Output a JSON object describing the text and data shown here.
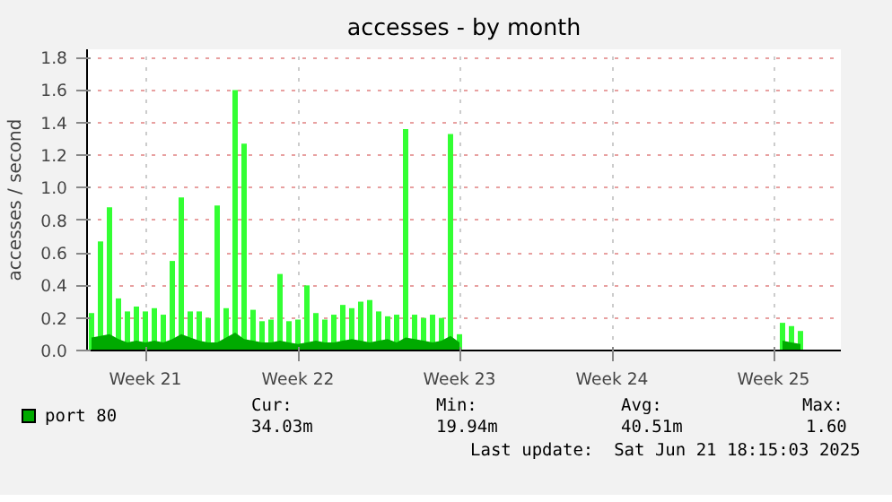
{
  "chart_data": {
    "type": "bar",
    "title": "accesses - by month",
    "ylabel": "accesses / second",
    "categories": [
      null,
      null,
      null,
      null,
      null,
      null,
      "Week 21",
      null,
      null,
      null,
      null,
      null,
      null,
      null,
      null,
      null,
      null,
      null,
      null,
      null,
      null,
      null,
      null,
      "Week 22",
      null,
      null,
      null,
      null,
      null,
      null,
      null,
      null,
      null,
      null,
      null,
      null,
      null,
      null,
      null,
      null,
      null,
      "Week 23",
      null,
      null,
      null,
      null,
      null,
      null,
      null,
      null,
      null,
      null,
      null,
      null,
      null,
      null,
      null,
      null,
      "Week 24",
      null,
      null,
      null,
      null,
      null,
      null,
      null,
      null,
      null,
      null,
      null,
      null,
      null,
      null,
      null,
      null,
      null,
      "Week 25",
      null,
      null,
      null,
      null,
      null,
      null,
      null
    ],
    "ylim": [
      0,
      1.85
    ],
    "yticks": [
      {
        "value": 0,
        "label": "0.0"
      },
      {
        "value": 0.2,
        "label": "0.2"
      },
      {
        "value": 0.4,
        "label": "0.4"
      },
      {
        "value": 0.6,
        "label": "0.6"
      },
      {
        "value": 0.8,
        "label": "0.8"
      },
      {
        "value": 1.0,
        "label": "1.0"
      },
      {
        "value": 1.2,
        "label": "1.2"
      },
      {
        "value": 1.4,
        "label": "1.4"
      },
      {
        "value": 1.6,
        "label": "1.6"
      },
      {
        "value": 1.8,
        "label": "1.8"
      }
    ],
    "grid": true,
    "legend": "bottom",
    "series": [
      {
        "color": "#33ff33",
        "values": [
          0.23,
          0.67,
          0.88,
          0.32,
          0.24,
          0.27,
          0.24,
          0.26,
          0.22,
          0.55,
          0.94,
          0.24,
          0.24,
          0.2,
          0.89,
          0.26,
          1.6,
          1.27,
          0.25,
          0.18,
          0.19,
          0.47,
          0.18,
          0.19,
          0.4,
          0.23,
          0.19,
          0.22,
          0.28,
          0.26,
          0.3,
          0.31,
          0.24,
          0.21,
          0.22,
          1.36,
          0.22,
          0.2,
          0.22,
          0.2,
          1.33,
          0.1,
          null,
          null,
          null,
          null,
          null,
          null,
          null,
          null,
          null,
          null,
          null,
          null,
          null,
          null,
          null,
          null,
          null,
          null,
          null,
          null,
          null,
          null,
          null,
          null,
          null,
          null,
          null,
          null,
          null,
          null,
          null,
          null,
          null,
          null,
          null,
          0.17,
          0.15,
          0.12,
          null,
          null,
          null,
          null
        ]
      },
      {
        "type": "area",
        "name": "port 80",
        "color": "#00aa00",
        "values": [
          0.08,
          0.09,
          0.1,
          0.07,
          0.05,
          0.06,
          0.05,
          0.06,
          0.05,
          0.07,
          0.1,
          0.08,
          0.06,
          0.05,
          0.05,
          0.08,
          0.11,
          0.07,
          0.06,
          0.05,
          0.05,
          0.06,
          0.05,
          0.04,
          0.05,
          0.06,
          0.05,
          0.05,
          0.06,
          0.07,
          0.06,
          0.05,
          0.06,
          0.07,
          0.05,
          0.08,
          0.07,
          0.06,
          0.05,
          0.06,
          0.09,
          0.05,
          null,
          null,
          null,
          null,
          null,
          null,
          null,
          null,
          null,
          null,
          null,
          null,
          null,
          null,
          null,
          null,
          null,
          null,
          null,
          null,
          null,
          null,
          null,
          null,
          null,
          null,
          null,
          null,
          null,
          null,
          null,
          null,
          null,
          null,
          null,
          0.06,
          0.05,
          0.04,
          null,
          null,
          null,
          null
        ]
      }
    ],
    "annotations": [
      "Cur:",
      "34.03m",
      "Min:",
      "19.94m",
      "Avg:",
      "40.51m",
      "Max:",
      "1.60",
      "Last update:  Sat Jun 21 18:15:03 2025"
    ]
  }
}
